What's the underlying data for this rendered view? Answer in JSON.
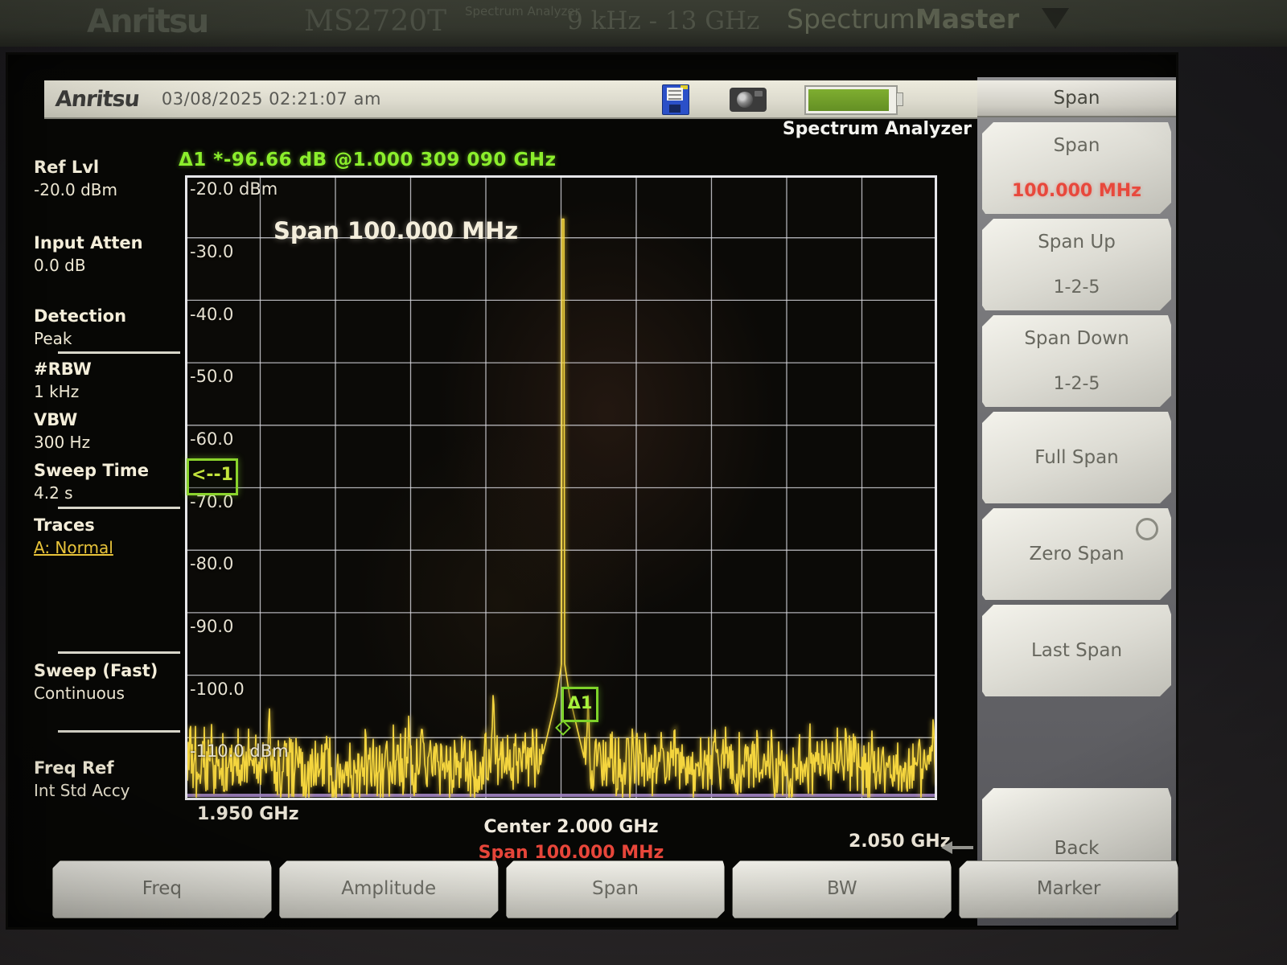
{
  "bezel": {
    "brand": "Anritsu",
    "model": "MS2720T",
    "model_sub": "Spectrum Analyzer",
    "freq_range": "9 kHz - 13 GHz",
    "product_name": "Spectrum",
    "product_name_bold": "Master"
  },
  "header": {
    "logo": "Anritsu",
    "datetime": "03/08/2025 02:21:07 am",
    "mode_label": "Spectrum Analyzer",
    "icons": [
      "floppy-save-icon",
      "camera-icon",
      "battery-icon"
    ]
  },
  "sidebar": {
    "items": [
      {
        "label": "Ref Lvl",
        "value": "-20.0 dBm"
      },
      {
        "label": "Input Atten",
        "value": "0.0 dB"
      },
      {
        "label": "Detection",
        "value": "Peak"
      },
      {
        "label": "#RBW",
        "value": "1 kHz"
      },
      {
        "label": "VBW",
        "value": "300 Hz"
      },
      {
        "label": "Sweep Time",
        "value": "4.2 s"
      },
      {
        "label": "Traces",
        "value": "A: Normal"
      },
      {
        "label": "Sweep (Fast)",
        "value": "Continuous"
      },
      {
        "label": "Freq Ref",
        "value": "Int Std Accy"
      }
    ]
  },
  "marker_readout": "Δ1 *-96.66 dB @1.000 309 090 GHz",
  "chart": {
    "span_overlay": "Span 100.000 MHz",
    "y_ticks": [
      "-20.0 dBm",
      "-30.0",
      "-40.0",
      "-50.0",
      "-60.0",
      "-70.0",
      "-80.0",
      "-90.0",
      "-100.0",
      "-110.0 dBm"
    ],
    "delta_marker_label": "Δ1",
    "ref_marker_label": "<--1",
    "x_axis": {
      "left": "1.950 GHz",
      "center_label": "Center",
      "center_value": "2.000 GHz",
      "span_label": "Span",
      "span_value": "100.000 MHz",
      "right": "2.050 GHz"
    }
  },
  "chart_data": {
    "type": "line",
    "title": "Span 100.000 MHz",
    "x_axis": {
      "start_ghz": 1.95,
      "center_ghz": 2.0,
      "stop_ghz": 2.05,
      "span_mhz": 100.0
    },
    "y_axis": {
      "ref_level_dbm": -20,
      "db_per_div": 10,
      "min_dbm": -120,
      "unit": "dBm"
    },
    "grid": {
      "cols": 10,
      "rows": 10
    },
    "trace": {
      "name": "A: Normal",
      "color": "#f4d53e",
      "noise_floor_dbm": -114.5,
      "noise_var_db": 3.5,
      "peak": {
        "freq_ghz": 2.0,
        "x_frac": 0.5027,
        "level_dbm": -27,
        "pedestal_dbm": -96.5
      },
      "spurs": [
        {
          "x_frac": 0.112,
          "level_dbm": -104
        },
        {
          "x_frac": 0.25,
          "level_dbm": -109
        },
        {
          "x_frac": 0.41,
          "level_dbm": -101.5
        },
        {
          "x_frac": 0.536,
          "level_dbm": -102.5
        },
        {
          "x_frac": 0.595,
          "level_dbm": -107
        },
        {
          "x_frac": 0.654,
          "level_dbm": -110
        },
        {
          "x_frac": 0.745,
          "level_dbm": -109
        },
        {
          "x_frac": 0.873,
          "level_dbm": -110.5
        },
        {
          "x_frac": 0.995,
          "level_dbm": -105.5
        }
      ],
      "delta_marker": {
        "label": "Δ1",
        "delta_db": -96.66,
        "delta_freq": "1.000 309 090 GHz"
      }
    }
  },
  "menu": {
    "title": "Span",
    "buttons": [
      {
        "label": "Span",
        "value": "100.000 MHz"
      },
      {
        "label": "Span Up",
        "sub": "1-2-5"
      },
      {
        "label": "Span Down",
        "sub": "1-2-5"
      },
      {
        "label": "Full Span",
        "sub": ""
      },
      {
        "label": "Zero Span",
        "sub": ""
      },
      {
        "label": "Last Span",
        "sub": ""
      }
    ],
    "back_label": "Back"
  },
  "softkeys": [
    "Freq",
    "Amplitude",
    "Span",
    "BW",
    "Marker"
  ],
  "colors": {
    "trace": "#f4d53e",
    "marker_green": "#8bee2c",
    "value_red": "#e8483c",
    "sweep_line": "#a284c4",
    "battery_fill": "#6f9c2a"
  }
}
